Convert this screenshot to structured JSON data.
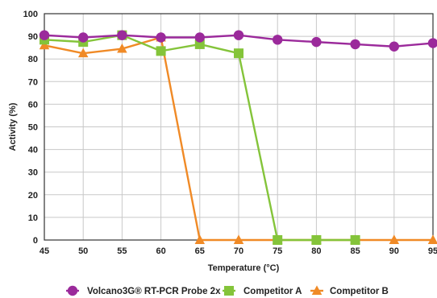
{
  "chart_data": {
    "type": "line",
    "xlabel": "Temperature (°C)",
    "ylabel": "Activity (%)",
    "x": [
      45,
      50,
      55,
      60,
      65,
      70,
      75,
      80,
      85,
      90,
      95
    ],
    "x_ticks": [
      45,
      50,
      55,
      60,
      65,
      70,
      75,
      80,
      85,
      90,
      95
    ],
    "y_ticks": [
      0,
      10,
      20,
      30,
      40,
      50,
      60,
      70,
      80,
      90,
      100
    ],
    "xlim": [
      45,
      95
    ],
    "ylim": [
      0,
      100
    ],
    "grid": true,
    "legend_position": "bottom",
    "series": [
      {
        "name": "Volcano3G® RT-PCR Probe 2x",
        "color": "#9b2a9b",
        "marker": "circle",
        "points": [
          [
            45,
            90.5
          ],
          [
            50,
            89.5
          ],
          [
            55,
            90.5
          ],
          [
            60,
            89.5
          ],
          [
            65,
            89.5
          ],
          [
            70,
            90.5
          ],
          [
            75,
            88.5
          ],
          [
            80,
            87.5
          ],
          [
            85,
            86.5
          ],
          [
            90,
            85.5
          ],
          [
            95,
            87
          ]
        ]
      },
      {
        "name": "Competitor A",
        "color": "#84c43a",
        "marker": "square",
        "points": [
          [
            45,
            88.5
          ],
          [
            50,
            87.5
          ],
          [
            55,
            90.5
          ],
          [
            60,
            83.5
          ],
          [
            65,
            86.5
          ],
          [
            70,
            82.5
          ],
          [
            75,
            0
          ],
          [
            80,
            0
          ],
          [
            85,
            0
          ]
        ]
      },
      {
        "name": "Competitor B",
        "color": "#f08a26",
        "marker": "triangle",
        "points": [
          [
            45,
            86
          ],
          [
            50,
            82.5
          ],
          [
            55,
            84.5
          ],
          [
            60,
            89.5
          ],
          [
            65,
            0
          ],
          [
            70,
            0
          ],
          [
            75,
            0
          ],
          [
            80,
            0
          ],
          [
            85,
            0
          ],
          [
            90,
            0
          ],
          [
            95,
            0
          ]
        ]
      }
    ]
  }
}
